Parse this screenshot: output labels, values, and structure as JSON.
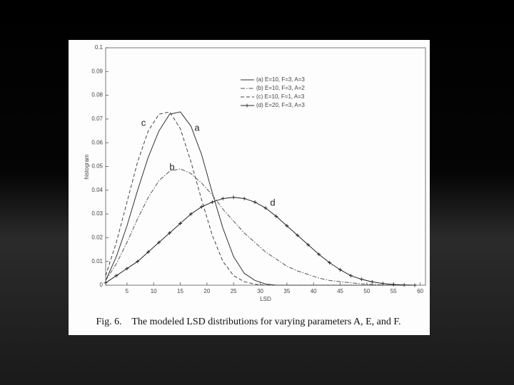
{
  "chart_data": {
    "type": "line",
    "x_label": "LSD",
    "y_label": "histogram",
    "caption": "Fig. 6.    The modeled LSD distributions for varying parameters A, E, and F.",
    "xlim": [
      1,
      61
    ],
    "ylim": [
      0,
      0.1
    ],
    "xticks": [
      5,
      10,
      15,
      20,
      25,
      30,
      35,
      40,
      45,
      50,
      55,
      60
    ],
    "yticks": [
      0,
      0.01,
      0.02,
      0.03,
      0.04,
      0.05,
      0.06,
      0.07,
      0.08,
      0.09,
      0.1
    ],
    "legend": "upper right",
    "x": [
      1,
      3,
      5,
      7,
      9,
      11,
      13,
      15,
      17,
      19,
      21,
      23,
      25,
      27,
      29,
      31,
      33,
      35,
      37,
      39,
      41,
      43,
      45,
      47,
      49,
      51,
      53,
      55,
      57,
      59
    ],
    "series": [
      {
        "name": "(a) E=10, F=3, A=3",
        "color": "#333333",
        "line_style": "solid",
        "values": [
          0.002,
          0.012,
          0.025,
          0.04,
          0.054,
          0.065,
          0.072,
          0.073,
          0.067,
          0.055,
          0.039,
          0.024,
          0.012,
          0.005,
          0.002,
          0.0005,
          0,
          0,
          0,
          0,
          0,
          0,
          0,
          0,
          0,
          0,
          0,
          0,
          0,
          0
        ]
      },
      {
        "name": "(b) E=10, F=3, A=2",
        "color": "#555555",
        "line_style": "dashdot",
        "values": [
          0.002,
          0.009,
          0.018,
          0.028,
          0.037,
          0.044,
          0.048,
          0.049,
          0.047,
          0.043,
          0.038,
          0.032,
          0.027,
          0.022,
          0.018,
          0.014,
          0.011,
          0.008,
          0.006,
          0.0045,
          0.003,
          0.002,
          0.0015,
          0.001,
          0.0006,
          0.0003,
          0.0001,
          0,
          0,
          0
        ]
      },
      {
        "name": "(c) E=10, F=1, A=3",
        "color": "#444444",
        "line_style": "dashed",
        "values": [
          0.004,
          0.018,
          0.035,
          0.052,
          0.065,
          0.072,
          0.073,
          0.066,
          0.052,
          0.036,
          0.021,
          0.01,
          0.004,
          0.0015,
          0.0004,
          0,
          0,
          0,
          0,
          0,
          0,
          0,
          0,
          0,
          0,
          0,
          0,
          0,
          0,
          0
        ]
      },
      {
        "name": "(d) E=20, F=3, A=3",
        "color": "#222222",
        "line_style": "solid",
        "marker": "+",
        "values": [
          0.001,
          0.004,
          0.007,
          0.01,
          0.014,
          0.018,
          0.022,
          0.026,
          0.03,
          0.033,
          0.035,
          0.0365,
          0.037,
          0.0365,
          0.035,
          0.0325,
          0.029,
          0.025,
          0.021,
          0.017,
          0.013,
          0.0095,
          0.0065,
          0.004,
          0.0025,
          0.0014,
          0.0007,
          0.0003,
          0.0001,
          0
        ]
      }
    ],
    "annotations": [
      "c",
      "a",
      "b",
      "d"
    ]
  }
}
